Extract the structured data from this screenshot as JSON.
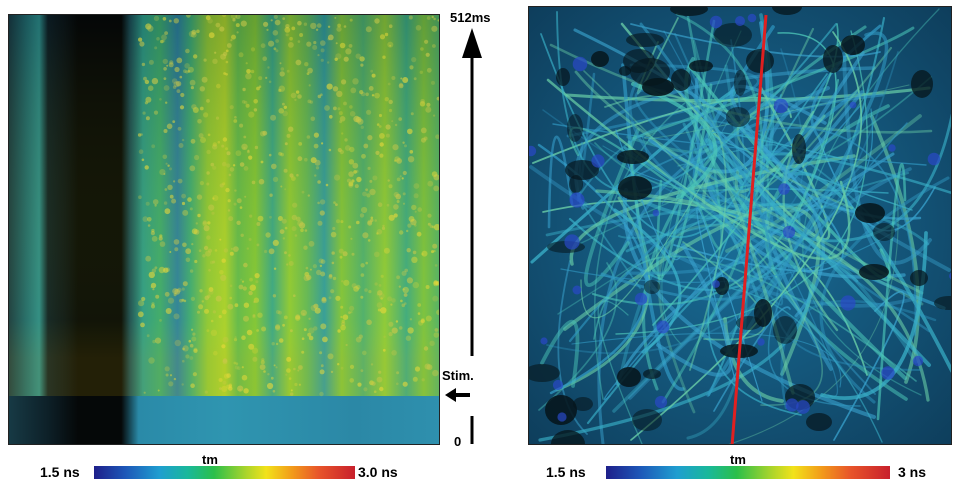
{
  "time_axis": {
    "top_label": "512ms",
    "stim_label": "Stim.",
    "zero_label": "0"
  },
  "colorbar_left": {
    "title": "tm",
    "min_label": "1.5 ns",
    "max_label": "3.0 ns"
  },
  "colorbar_right": {
    "title": "tm",
    "min_label": "1.5 ns",
    "max_label": "3 ns"
  },
  "colors": {
    "scan_line": "#e02020",
    "lifetime_low": "#1e1f8a",
    "lifetime_mid": "#2bbf4a",
    "lifetime_high": "#c8202c"
  }
}
